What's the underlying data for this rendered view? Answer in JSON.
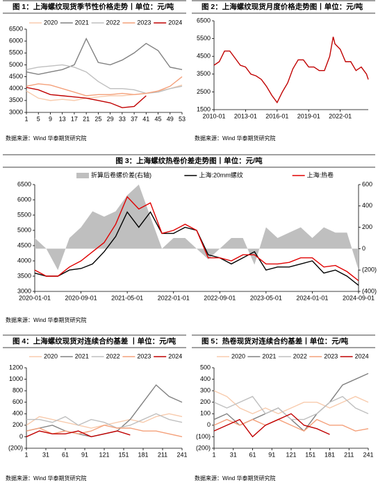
{
  "chart_data": [
    {
      "type": "line",
      "title": "图 1：上海螺纹现货季节性价格走势丨单位：元/吨",
      "source": "数据来源：Wind 华泰期货研究院",
      "x": [
        1,
        5,
        9,
        13,
        17,
        21,
        25,
        29,
        33,
        37,
        41,
        45,
        49,
        53
      ],
      "xlim": [
        1,
        53
      ],
      "xticks": [
        1,
        5,
        9,
        13,
        17,
        21,
        25,
        29,
        33,
        37,
        41,
        45,
        49,
        53
      ],
      "ylim": [
        3000,
        6500
      ],
      "yticks": [
        3000,
        3500,
        4000,
        4500,
        5000,
        5500,
        6000,
        6500
      ],
      "legend": "top",
      "series": [
        {
          "name": "2020",
          "color": "#f8cbad",
          "values": [
            3900,
            3600,
            3500,
            3550,
            3500,
            3600,
            3650,
            3700,
            3700,
            3750,
            3800,
            3900,
            4000,
            4150
          ]
        },
        {
          "name": "2021",
          "color": "#808080",
          "values": [
            4700,
            4600,
            4700,
            4800,
            5000,
            6100,
            5100,
            5000,
            5200,
            5500,
            5900,
            5600,
            4900,
            4800
          ]
        },
        {
          "name": "2022",
          "color": "#bfbfbf",
          "values": [
            4800,
            4900,
            4950,
            5000,
            4900,
            4700,
            4300,
            4000,
            4000,
            3950,
            3800,
            3850,
            4000,
            4100
          ]
        },
        {
          "name": "2023",
          "color": "#f4a07a",
          "values": [
            4100,
            4200,
            4150,
            4000,
            3850,
            3700,
            3750,
            3750,
            3800,
            3750,
            3800,
            3900,
            4100,
            4500
          ]
        },
        {
          "name": "2024",
          "color": "#c00000",
          "values": [
            4050,
            3950,
            3750,
            3700,
            3650,
            3600,
            3500,
            3400,
            3200,
            3250,
            3700,
            null,
            null,
            null
          ]
        }
      ]
    },
    {
      "type": "line",
      "title": "图 2：上海螺纹现货月度价格走势图丨单位：元/吨",
      "source": "数据来源：Wind 华泰期货研究院",
      "x": [
        "2010-01",
        "2010-07",
        "2011-01",
        "2011-07",
        "2012-01",
        "2012-07",
        "2013-01",
        "2013-07",
        "2014-01",
        "2014-07",
        "2015-01",
        "2015-07",
        "2016-01",
        "2016-07",
        "2017-01",
        "2017-07",
        "2018-01",
        "2018-07",
        "2019-01",
        "2019-07",
        "2020-01",
        "2020-07",
        "2021-01",
        "2021-05",
        "2021-07",
        "2022-01",
        "2022-07",
        "2023-01",
        "2023-07",
        "2024-01",
        "2024-07",
        "2024-09"
      ],
      "xlim": [
        "2010-01",
        "2024-09"
      ],
      "xticks": [
        "2010-01",
        "2013-01",
        "2016-01",
        "2019-01",
        "2022-01"
      ],
      "ylim": [
        1500,
        6500
      ],
      "yticks": [
        1500,
        2500,
        3500,
        4500,
        5500,
        6500
      ],
      "series": [
        {
          "color": "#c00000",
          "values": [
            4000,
            4200,
            4800,
            4800,
            4400,
            4000,
            3900,
            3500,
            3400,
            3200,
            2800,
            2300,
            1900,
            2500,
            3000,
            3800,
            4300,
            4300,
            3900,
            3900,
            3700,
            3700,
            4500,
            5600,
            5200,
            4900,
            4200,
            4200,
            3700,
            3900,
            3500,
            3200
          ]
        }
      ]
    },
    {
      "type": "line",
      "title": "图 3：上海螺纹热卷价差走势图丨单位：元/吨",
      "source": "数据来源：Wind 华泰期货研究院",
      "x": [
        "2020-01-01",
        "2020-03-01",
        "2020-05-01",
        "2020-07-01",
        "2020-09-01",
        "2020-11-01",
        "2021-01-01",
        "2021-03-01",
        "2021-05-01",
        "2021-07-01",
        "2021-09-01",
        "2021-11-01",
        "2022-01-01",
        "2022-03-01",
        "2022-05-01",
        "2022-07-01",
        "2022-09-01",
        "2022-11-01",
        "2023-01-01",
        "2023-03-01",
        "2023-05-01",
        "2023-07-01",
        "2023-09-01",
        "2023-11-01",
        "2024-01-01",
        "2024-03-01",
        "2024-05-01",
        "2024-07-01",
        "2024-09-01"
      ],
      "xlim": [
        "2020-01-01",
        "2024-09-01"
      ],
      "xticks": [
        "2020-01-01",
        "2020-09-01",
        "2021-05-01",
        "2022-01-01",
        "2022-09-01",
        "2023-05-01",
        "2024-01-01",
        "2024-09-01"
      ],
      "ylim": [
        3000,
        6500
      ],
      "yticks": [
        3000,
        3500,
        4000,
        4500,
        5000,
        5500,
        6000,
        6500
      ],
      "y2lim": [
        -400,
        600
      ],
      "y2ticks": [
        {
          "value": -400,
          "label": "(400)"
        },
        {
          "value": -200,
          "label": "(200)"
        },
        0,
        200,
        400,
        600
      ],
      "legend": "top",
      "series": [
        {
          "name": "折算后卷螺价差(右轴)",
          "color": "#bfbfbf",
          "style": "area",
          "axis": "y2",
          "values": [
            100,
            0,
            -200,
            100,
            200,
            350,
            300,
            350,
            500,
            600,
            300,
            0,
            100,
            100,
            0,
            -100,
            0,
            100,
            100,
            -150,
            200,
            100,
            150,
            200,
            100,
            200,
            150,
            150,
            -200
          ]
        },
        {
          "name": "上海:20mm螺纹",
          "color": "#000000",
          "values": [
            3600,
            3500,
            3500,
            3700,
            3750,
            3900,
            4300,
            4800,
            5600,
            5100,
            5600,
            4900,
            4900,
            5100,
            5000,
            4200,
            4100,
            3900,
            4100,
            4300,
            3700,
            3800,
            3800,
            3900,
            4000,
            3600,
            3700,
            3500,
            3200
          ]
        },
        {
          "name": "上海:热卷",
          "color": "#e00000",
          "values": [
            3700,
            3500,
            3500,
            3800,
            4000,
            4300,
            4600,
            5200,
            6100,
            5700,
            5900,
            4900,
            5000,
            5200,
            5000,
            4100,
            4100,
            4000,
            4200,
            4200,
            3900,
            3900,
            3950,
            4100,
            4100,
            3800,
            3850,
            3650,
            3350
          ]
        }
      ]
    },
    {
      "type": "line",
      "title": "图 4：上海螺纹现货对连续合约基差 丨单位：元/吨",
      "source": "数据来源：Wind 华泰期货研究院",
      "x": [
        1,
        21,
        41,
        61,
        81,
        101,
        121,
        141,
        161,
        181,
        201,
        221,
        241
      ],
      "xlim": [
        1,
        241
      ],
      "xticks": [
        1,
        31,
        61,
        91,
        121,
        151,
        181,
        211,
        241
      ],
      "ylim": [
        -200,
        1200
      ],
      "yticks": [
        {
          "value": -200,
          "label": "(200)"
        },
        0,
        200,
        400,
        600,
        800,
        1000,
        1200
      ],
      "legend": "top",
      "series": [
        {
          "name": "2020",
          "color": "#f8cbad",
          "values": [
            200,
            350,
            300,
            250,
            200,
            150,
            200,
            250,
            300,
            250,
            350,
            400,
            350
          ]
        },
        {
          "name": "2021",
          "color": "#808080",
          "values": [
            100,
            150,
            200,
            100,
            50,
            0,
            50,
            100,
            300,
            600,
            900,
            700,
            600
          ]
        },
        {
          "name": "2022",
          "color": "#bfbfbf",
          "values": [
            300,
            300,
            250,
            350,
            200,
            300,
            250,
            150,
            200,
            300,
            400,
            300,
            250
          ]
        },
        {
          "name": "2023",
          "color": "#f4a07a",
          "values": [
            100,
            150,
            50,
            100,
            50,
            100,
            200,
            150,
            150,
            100,
            100,
            50,
            0
          ]
        },
        {
          "name": "2024",
          "color": "#c00000",
          "values": [
            0,
            100,
            50,
            50,
            100,
            0,
            50,
            100,
            30,
            null,
            null,
            null,
            null
          ]
        }
      ]
    },
    {
      "type": "line",
      "title": "图 5：热卷现货对连续合约基差丨单位：元/吨",
      "source": "数据来源：Wind 华泰期货研究院",
      "x": [
        1,
        21,
        41,
        61,
        81,
        101,
        121,
        141,
        161,
        181,
        201,
        221,
        241
      ],
      "xlim": [
        1,
        241
      ],
      "xticks": [
        1,
        31,
        61,
        91,
        121,
        151,
        181,
        211,
        241
      ],
      "ylim": [
        -200,
        500
      ],
      "yticks": [
        {
          "value": -200,
          "label": "(200)"
        },
        {
          "value": -100,
          "label": "(100)"
        },
        0,
        100,
        200,
        300,
        400,
        500
      ],
      "legend": "top",
      "series": [
        {
          "name": "2020",
          "color": "#f8cbad",
          "values": [
            300,
            250,
            150,
            100,
            150,
            100,
            150,
            200,
            200,
            150,
            200,
            250,
            200
          ]
        },
        {
          "name": "2021",
          "color": "#808080",
          "values": [
            50,
            100,
            0,
            50,
            100,
            150,
            50,
            -50,
            100,
            200,
            350,
            400,
            450
          ]
        },
        {
          "name": "2022",
          "color": "#bfbfbf",
          "values": [
            200,
            150,
            200,
            250,
            100,
            150,
            50,
            50,
            100,
            200,
            250,
            150,
            100
          ]
        },
        {
          "name": "2023",
          "color": "#f4a07a",
          "values": [
            0,
            50,
            0,
            50,
            0,
            50,
            0,
            -50,
            50,
            0,
            0,
            -50,
            -30
          ]
        },
        {
          "name": "2024",
          "color": "#c00000",
          "values": [
            -50,
            0,
            50,
            -100,
            0,
            50,
            100,
            0,
            -30,
            -80,
            null,
            null,
            null
          ]
        }
      ]
    }
  ]
}
